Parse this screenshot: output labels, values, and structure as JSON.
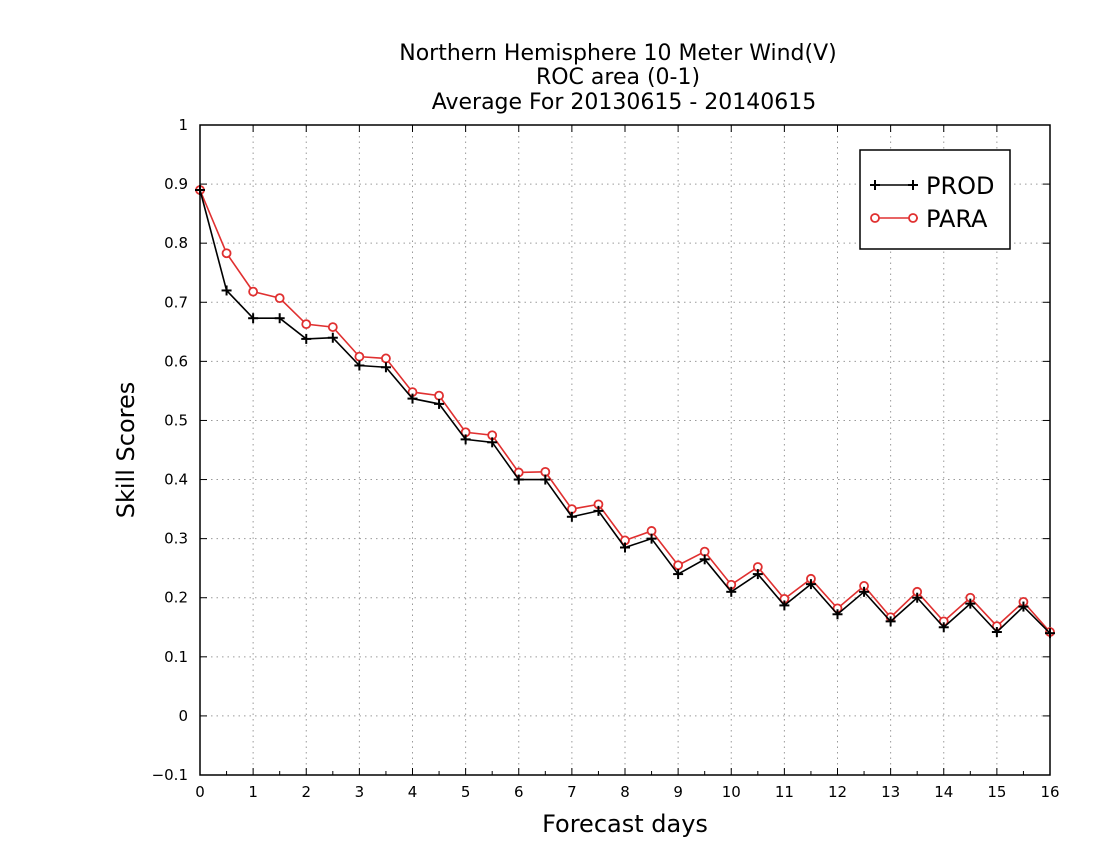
{
  "chart_data": {
    "type": "line",
    "title": [
      "Northern Hemisphere 10 Meter Wind(V)",
      "ROC area (0-1)",
      "Average For 20130615 - 20140615"
    ],
    "xlabel": "Forecast days",
    "ylabel": "Skill Scores",
    "xlim": [
      0,
      16
    ],
    "ylim": [
      -0.1,
      1
    ],
    "xticks": [
      0,
      1,
      2,
      3,
      4,
      5,
      6,
      7,
      8,
      9,
      10,
      11,
      12,
      13,
      14,
      15,
      16
    ],
    "yticks": [
      -0.1,
      0,
      0.1,
      0.2,
      0.3,
      0.4,
      0.5,
      0.6,
      0.7,
      0.8,
      0.9,
      1
    ],
    "grid": true,
    "legend_position": "top-right",
    "x": [
      0,
      0.5,
      1,
      1.5,
      2,
      2.5,
      3,
      3.5,
      4,
      4.5,
      5,
      5.5,
      6,
      6.5,
      7,
      7.5,
      8,
      8.5,
      9,
      9.5,
      10,
      10.5,
      11,
      11.5,
      12,
      12.5,
      13,
      13.5,
      14,
      14.5,
      15,
      15.5,
      16
    ],
    "series": [
      {
        "name": "PROD",
        "color": "#000000",
        "marker": "plus",
        "values": [
          0.89,
          0.72,
          0.673,
          0.673,
          0.638,
          0.64,
          0.593,
          0.59,
          0.537,
          0.528,
          0.468,
          0.463,
          0.4,
          0.4,
          0.337,
          0.347,
          0.285,
          0.3,
          0.24,
          0.265,
          0.21,
          0.24,
          0.187,
          0.223,
          0.172,
          0.21,
          0.16,
          0.2,
          0.15,
          0.19,
          0.142,
          0.185,
          0.14
        ]
      },
      {
        "name": "PARA",
        "color": "#e03030",
        "marker": "circle",
        "values": [
          0.89,
          0.783,
          0.718,
          0.707,
          0.663,
          0.658,
          0.608,
          0.605,
          0.548,
          0.542,
          0.48,
          0.475,
          0.412,
          0.413,
          0.35,
          0.358,
          0.297,
          0.313,
          0.255,
          0.278,
          0.222,
          0.252,
          0.198,
          0.232,
          0.182,
          0.22,
          0.167,
          0.21,
          0.16,
          0.2,
          0.152,
          0.193,
          0.142
        ]
      }
    ]
  }
}
